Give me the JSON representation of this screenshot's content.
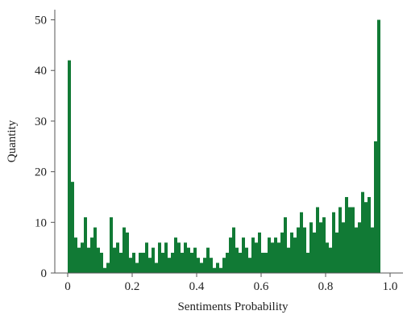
{
  "chart_data": {
    "type": "bar",
    "xlabel": "Sentiments Probability",
    "ylabel": "Quantity",
    "xlim": [
      -0.04,
      1.04
    ],
    "ylim": [
      0,
      52
    ],
    "x_ticks": [
      0,
      0.2,
      0.4,
      0.6,
      0.8,
      1.0
    ],
    "x_tick_labels": [
      "0",
      "0.2",
      "0.4",
      "0.6",
      "0.8",
      "1.0"
    ],
    "y_ticks": [
      0,
      10,
      20,
      30,
      40,
      50
    ],
    "y_tick_labels": [
      "0",
      "10",
      "20",
      "30",
      "40",
      "50"
    ],
    "bin_width": 0.01,
    "bin_starts": [
      0.0,
      0.01,
      0.02,
      0.03,
      0.04,
      0.05,
      0.06,
      0.07,
      0.08,
      0.09,
      0.1,
      0.11,
      0.12,
      0.13,
      0.14,
      0.15,
      0.16,
      0.17,
      0.18,
      0.19,
      0.2,
      0.21,
      0.22,
      0.23,
      0.24,
      0.25,
      0.26,
      0.27,
      0.28,
      0.29,
      0.3,
      0.31,
      0.32,
      0.33,
      0.34,
      0.35,
      0.36,
      0.37,
      0.38,
      0.39,
      0.4,
      0.41,
      0.42,
      0.43,
      0.44,
      0.45,
      0.46,
      0.47,
      0.48,
      0.49,
      0.5,
      0.51,
      0.52,
      0.53,
      0.54,
      0.55,
      0.56,
      0.57,
      0.58,
      0.59,
      0.6,
      0.61,
      0.62,
      0.63,
      0.64,
      0.65,
      0.66,
      0.67,
      0.68,
      0.69,
      0.7,
      0.71,
      0.72,
      0.73,
      0.74,
      0.75,
      0.76,
      0.77,
      0.78,
      0.79,
      0.8,
      0.81,
      0.82,
      0.83,
      0.84,
      0.85,
      0.86,
      0.87,
      0.88,
      0.89,
      0.9,
      0.91,
      0.92,
      0.93,
      0.94,
      0.95,
      0.96,
      0.97,
      0.98
    ],
    "values": [
      42,
      18,
      7,
      5,
      6,
      11,
      5,
      7,
      9,
      5,
      4,
      1,
      2,
      11,
      5,
      6,
      4,
      9,
      8,
      3,
      4,
      2,
      4,
      4,
      6,
      3,
      5,
      2,
      6,
      4,
      6,
      3,
      4,
      7,
      6,
      4,
      6,
      5,
      4,
      5,
      3,
      2,
      3,
      5,
      3,
      1,
      2,
      1,
      3,
      4,
      7,
      9,
      5,
      4,
      7,
      5,
      3,
      7,
      6,
      8,
      4,
      4,
      7,
      6,
      7,
      6,
      8,
      11,
      5,
      8,
      7,
      9,
      12,
      9,
      4,
      10,
      8,
      13,
      10,
      11,
      6,
      5,
      12,
      8,
      13,
      10,
      15,
      13,
      13,
      9,
      10,
      16,
      14,
      15,
      9,
      26,
      50,
      0,
      0
    ]
  },
  "colors": {
    "bar": "#117a35",
    "axis": "#555555"
  }
}
